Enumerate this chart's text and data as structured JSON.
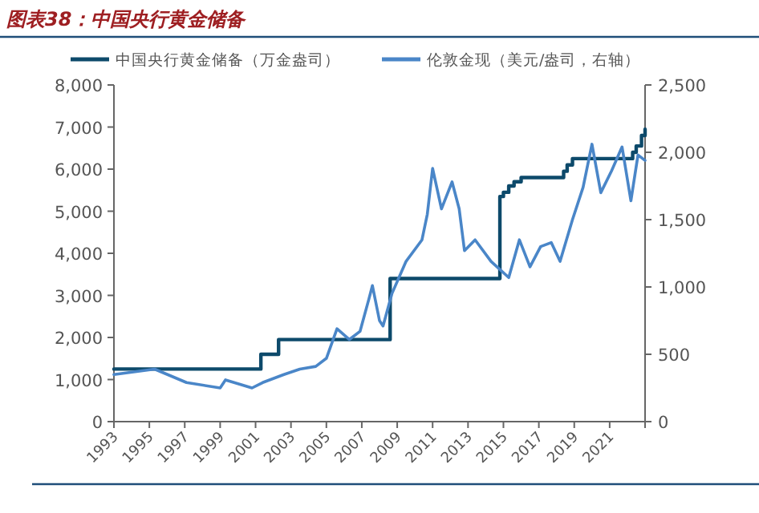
{
  "chart_data": {
    "type": "line",
    "title": "图表38：中国央行黄金储备",
    "legend": "top",
    "xlim": [
      1993,
      2023
    ],
    "xticks": [
      1993,
      1995,
      1997,
      1999,
      2001,
      2003,
      2005,
      2007,
      2009,
      2011,
      2013,
      2015,
      2017,
      2019,
      2021,
      {
        "value": 2023,
        "label": null
      }
    ],
    "ylim": [
      0,
      8000
    ],
    "yticks": [
      0,
      {
        "value": 1000,
        "label": "1,000"
      },
      {
        "value": 2000,
        "label": "2,000"
      },
      {
        "value": 3000,
        "label": "3,000"
      },
      {
        "value": 4000,
        "label": "4,000"
      },
      {
        "value": 5000,
        "label": "5,000"
      },
      {
        "value": 6000,
        "label": "6,000"
      },
      {
        "value": 7000,
        "label": "7,000"
      },
      {
        "value": 8000,
        "label": "8,000"
      }
    ],
    "y2lim": [
      0,
      2500
    ],
    "y2ticks": [
      0,
      500,
      {
        "value": 1000,
        "label": "1,000"
      },
      {
        "value": 1500,
        "label": "1,500"
      },
      {
        "value": 2000,
        "label": "2,000"
      },
      {
        "value": 2500,
        "label": "2,500"
      }
    ],
    "series": [
      {
        "name": "中国央行黄金储备（万金盎司）",
        "type": "step",
        "color": "#0d4a6b",
        "x": [
          1993.0,
          2001.3,
          2002.3,
          2008.6,
          2014.8,
          2015.0,
          2015.3,
          2015.6,
          2016.0,
          2018.4,
          2018.6,
          2018.9,
          2022.3,
          2022.5,
          2022.8,
          2023.0
        ],
        "values": [
          1250,
          1600,
          1950,
          3400,
          5350,
          5450,
          5600,
          5700,
          5800,
          5950,
          6100,
          6250,
          6400,
          6550,
          6800,
          6950
        ]
      },
      {
        "name": "伦敦金现（美元/盎司，右轴）",
        "type": "line",
        "axis": "y2",
        "color": "#4a86c8",
        "x": [
          1993.0,
          1995.3,
          1997.1,
          1999.0,
          1999.3,
          2000.8,
          2001.4,
          2002.6,
          2003.5,
          2004.4,
          2005.0,
          2005.6,
          2006.3,
          2006.9,
          2007.4,
          2007.6,
          2008.0,
          2008.2,
          2008.7,
          2009.5,
          2010.4,
          2010.7,
          2011.0,
          2011.5,
          2012.1,
          2012.5,
          2012.8,
          2013.4,
          2014.3,
          2015.3,
          2015.9,
          2016.5,
          2017.1,
          2017.7,
          2018.2,
          2018.9,
          2019.5,
          2020.0,
          2020.5,
          2021.1,
          2021.7,
          2022.2,
          2022.6,
          2023.0
        ],
        "values": [
          350,
          390,
          290,
          250,
          310,
          250,
          290,
          350,
          390,
          410,
          470,
          690,
          610,
          670,
          910,
          1010,
          750,
          710,
          950,
          1190,
          1350,
          1540,
          1880,
          1580,
          1780,
          1580,
          1270,
          1350,
          1190,
          1070,
          1350,
          1150,
          1300,
          1330,
          1190,
          1500,
          1740,
          2060,
          1700,
          1860,
          2040,
          1640,
          1980,
          1940
        ]
      }
    ]
  }
}
